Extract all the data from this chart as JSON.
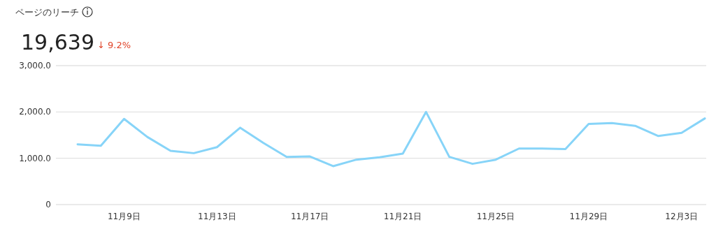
{
  "chart_data": {
    "type": "line",
    "title": "ページのリーチ",
    "annotations": [
      "19,639",
      "↓ 9.2%"
    ],
    "categories": [
      null,
      null,
      "11月9日",
      null,
      null,
      null,
      "11月13日",
      null,
      null,
      null,
      "11月17日",
      null,
      null,
      null,
      "11月21日",
      null,
      null,
      null,
      "11月25日",
      null,
      null,
      null,
      "11月29日",
      null,
      null,
      null,
      "12月3日",
      null
    ],
    "series": [
      {
        "color": "#87d4f8",
        "values": [
          1300,
          1270,
          1850,
          1460,
          1160,
          1110,
          1240,
          1660,
          1330,
          1030,
          1040,
          830,
          970,
          1020,
          1100,
          2000,
          1030,
          880,
          970,
          1210,
          1210,
          1200,
          1740,
          1760,
          1700,
          1480,
          1550,
          1860
        ]
      }
    ],
    "ylim": [
      0,
      3000
    ],
    "yticks": [
      0,
      {
        "value": 1000,
        "label": "1,000.0"
      },
      {
        "value": 2000,
        "label": "2,000.0"
      },
      {
        "value": 3000,
        "label": "3,000.0"
      }
    ],
    "grid": "y",
    "marker": "none",
    "line_style": "solid"
  }
}
